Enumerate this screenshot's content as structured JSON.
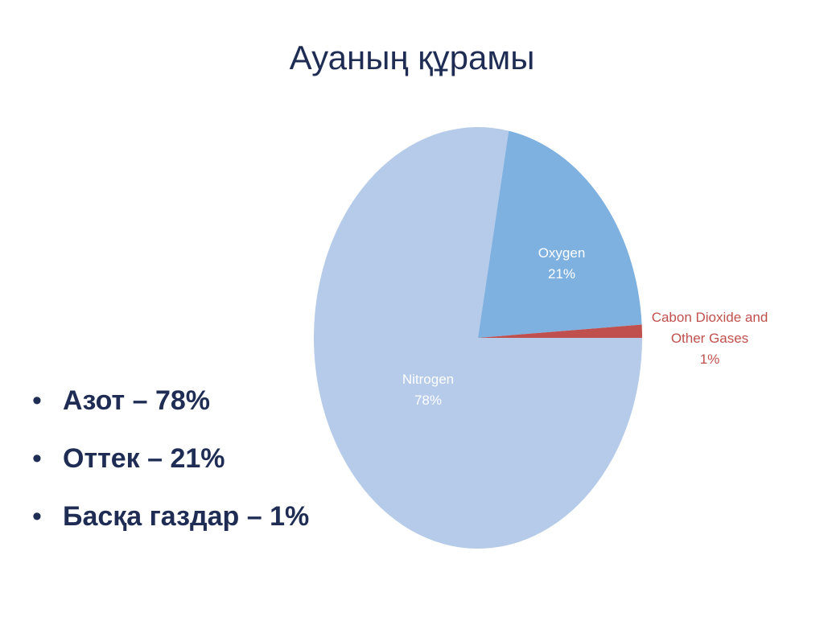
{
  "chart_data": {
    "type": "pie",
    "title": "Ауаның құрамы",
    "categories": [
      "Nitrogen",
      "Oxygen",
      "Cabon Dioxide and Other Gases"
    ],
    "values": [
      78,
      21,
      1
    ],
    "value_labels": [
      "78%",
      "21%",
      "1%"
    ],
    "colors": [
      "#b5cbe9",
      "#7eb0e0",
      "#c0504d"
    ]
  },
  "bullets": [
    "Азот – 78%",
    "Оттек – 21%",
    "Басқа газдар – 1%"
  ]
}
